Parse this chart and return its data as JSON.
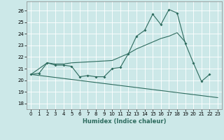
{
  "xlabel": "Humidex (Indice chaleur)",
  "bg_color": "#cce8e8",
  "grid_color": "#ffffff",
  "line_color": "#2d6b5e",
  "xlim": [
    -0.5,
    23.5
  ],
  "ylim": [
    17.5,
    26.8
  ],
  "yticks": [
    18,
    19,
    20,
    21,
    22,
    23,
    24,
    25,
    26
  ],
  "xticks": [
    0,
    1,
    2,
    3,
    4,
    5,
    6,
    7,
    8,
    9,
    10,
    11,
    12,
    13,
    14,
    15,
    16,
    17,
    18,
    19,
    20,
    21,
    22,
    23
  ],
  "curve1_x": [
    0,
    1,
    2,
    3,
    4,
    5,
    6,
    7,
    8,
    9,
    10,
    11,
    12,
    13,
    14,
    15,
    16,
    17,
    18,
    19,
    20,
    21,
    22
  ],
  "curve1_y": [
    20.5,
    20.6,
    21.5,
    21.3,
    21.3,
    21.2,
    20.3,
    20.4,
    20.3,
    20.3,
    21.0,
    21.1,
    22.3,
    23.8,
    24.3,
    25.7,
    24.8,
    26.1,
    25.8,
    23.2,
    21.5,
    19.9,
    20.5
  ],
  "curve2_x": [
    0,
    2,
    3,
    4,
    5,
    10,
    11,
    12,
    13,
    14,
    15,
    16,
    17,
    18,
    19
  ],
  "curve2_y": [
    20.5,
    21.5,
    21.4,
    21.4,
    21.5,
    21.7,
    22.0,
    22.3,
    22.7,
    23.0,
    23.3,
    23.6,
    23.8,
    24.1,
    23.3
  ],
  "curve3_x": [
    0,
    23
  ],
  "curve3_y": [
    20.5,
    18.5
  ]
}
